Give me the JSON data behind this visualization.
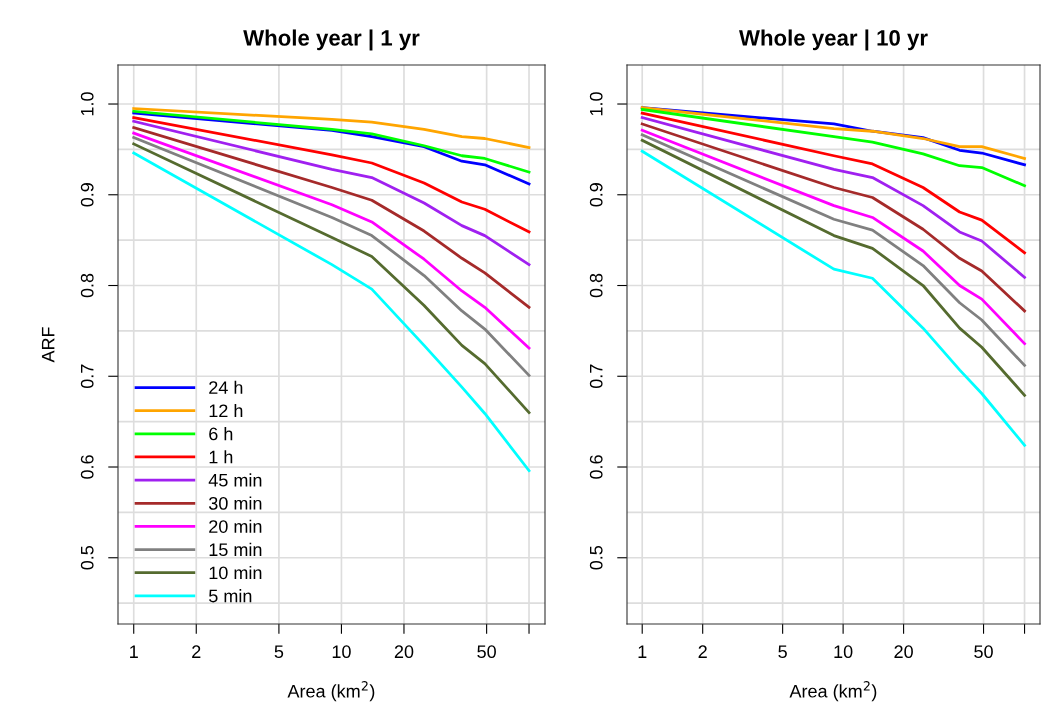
{
  "chart_data": [
    {
      "type": "line",
      "title": "Whole year | 1 yr",
      "xlabel": "Area (km$^{2}$)",
      "ylabel": "ARF",
      "log": "x",
      "grid": true,
      "legend": "bottom left",
      "x": [
        1,
        9,
        14,
        25,
        38,
        49,
        80
      ],
      "xlim": [
        0.84,
        95.5
      ],
      "xticks": [
        1,
        2,
        5,
        10,
        20,
        50,
        {
          "value": 80,
          "label": null
        }
      ],
      "ylim": [
        0.427,
        1.043
      ],
      "yticks": [
        {
          "value": 0.45,
          "label": null
        },
        0.5,
        {
          "value": 0.55,
          "label": null
        },
        0.6,
        {
          "value": 0.65,
          "label": null
        },
        0.7,
        {
          "value": 0.75,
          "label": null
        },
        0.8,
        {
          "value": 0.85,
          "label": null
        },
        0.9,
        {
          "value": 0.95,
          "label": null
        },
        {
          "value": 1.0,
          "label": "1.0"
        }
      ],
      "series": [
        {
          "name": "24 h",
          "color": "#0000ff",
          "values": [
            0.99,
            0.971,
            0.964,
            0.953,
            0.937,
            0.933,
            0.912
          ]
        },
        {
          "name": "12 h",
          "color": "#ffa500",
          "values": [
            0.995,
            0.983,
            0.98,
            0.972,
            0.964,
            0.962,
            0.952
          ]
        },
        {
          "name": "6 h",
          "color": "#00ff00",
          "values": [
            0.992,
            0.972,
            0.967,
            0.954,
            0.943,
            0.94,
            0.925
          ]
        },
        {
          "name": "1 h",
          "color": "#ff0000",
          "values": [
            0.985,
            0.944,
            0.935,
            0.913,
            0.892,
            0.884,
            0.859
          ]
        },
        {
          "name": "45 min",
          "color": "#a020f0",
          "values": [
            0.981,
            0.928,
            0.919,
            0.891,
            0.866,
            0.855,
            0.823
          ]
        },
        {
          "name": "30 min",
          "color": "#a52a2a",
          "values": [
            0.974,
            0.908,
            0.894,
            0.86,
            0.83,
            0.814,
            0.776
          ]
        },
        {
          "name": "20 min",
          "color": "#ff00ff",
          "values": [
            0.968,
            0.889,
            0.87,
            0.829,
            0.794,
            0.776,
            0.731
          ]
        },
        {
          "name": "15 min",
          "color": "#808080",
          "values": [
            0.963,
            0.875,
            0.855,
            0.811,
            0.772,
            0.752,
            0.701
          ]
        },
        {
          "name": "10 min",
          "color": "#556b2f",
          "values": [
            0.956,
            0.853,
            0.832,
            0.778,
            0.734,
            0.714,
            0.66
          ]
        },
        {
          "name": "5 min",
          "color": "#00ffff",
          "values": [
            0.946,
            0.823,
            0.796,
            0.734,
            0.688,
            0.659,
            0.596
          ]
        }
      ]
    },
    {
      "type": "line",
      "title": "Whole year | 10 yr",
      "xlabel": "Area (km$^{2}$)",
      "log": "x",
      "grid": true,
      "x": [
        1,
        9,
        14,
        25,
        38,
        49,
        80
      ],
      "xlim": [
        0.84,
        95.5
      ],
      "xticks": [
        1,
        2,
        5,
        10,
        20,
        50,
        {
          "value": 80,
          "label": null
        }
      ],
      "ylim": [
        0.427,
        1.043
      ],
      "yticks": [
        {
          "value": 0.45,
          "label": null
        },
        0.5,
        {
          "value": 0.55,
          "label": null
        },
        0.6,
        {
          "value": 0.65,
          "label": null
        },
        0.7,
        {
          "value": 0.75,
          "label": null
        },
        0.8,
        {
          "value": 0.85,
          "label": null
        },
        0.9,
        {
          "value": 0.95,
          "label": null
        },
        {
          "value": 1.0,
          "label": "1.0"
        }
      ],
      "series": [
        {
          "color": "#0000ff",
          "values": [
            0.996,
            0.978,
            0.97,
            0.963,
            0.949,
            0.946,
            0.933
          ]
        },
        {
          "color": "#ffa500",
          "values": [
            0.996,
            0.973,
            0.97,
            0.962,
            0.953,
            0.953,
            0.94
          ]
        },
        {
          "color": "#00ff00",
          "values": [
            0.994,
            0.964,
            0.958,
            0.945,
            0.932,
            0.93,
            0.91
          ]
        },
        {
          "color": "#ff0000",
          "values": [
            0.99,
            0.943,
            0.934,
            0.908,
            0.881,
            0.872,
            0.836
          ]
        },
        {
          "color": "#a020f0",
          "values": [
            0.985,
            0.928,
            0.919,
            0.888,
            0.859,
            0.849,
            0.809
          ]
        },
        {
          "color": "#a52a2a",
          "values": [
            0.978,
            0.908,
            0.897,
            0.862,
            0.83,
            0.816,
            0.772
          ]
        },
        {
          "color": "#ff00ff",
          "values": [
            0.971,
            0.888,
            0.875,
            0.838,
            0.8,
            0.785,
            0.736
          ]
        },
        {
          "color": "#808080",
          "values": [
            0.966,
            0.873,
            0.861,
            0.822,
            0.781,
            0.762,
            0.712
          ]
        },
        {
          "color": "#556b2f",
          "values": [
            0.96,
            0.855,
            0.841,
            0.8,
            0.753,
            0.732,
            0.679
          ]
        },
        {
          "color": "#00ffff",
          "values": [
            0.948,
            0.818,
            0.808,
            0.753,
            0.707,
            0.681,
            0.624
          ]
        }
      ]
    }
  ]
}
